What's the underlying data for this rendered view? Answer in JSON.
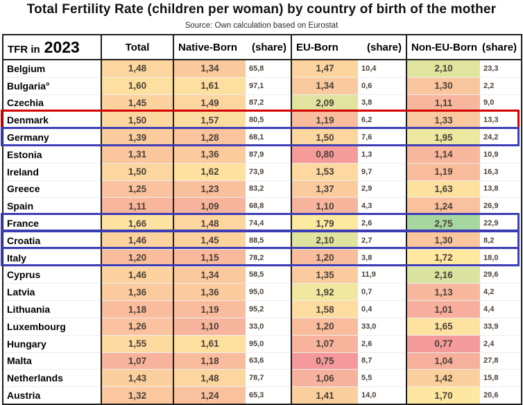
{
  "title": "Total Fertility Rate (children per woman) by country of birth of the mother",
  "source": "Source: Own calculation based on Eurostat",
  "table": {
    "corner": {
      "prefix": "TFR in",
      "year": "2023"
    },
    "col_headers": {
      "total": "Total",
      "native": "Native-Born",
      "native_share": "(share)",
      "eu": "EU-Born",
      "eu_share": "(share)",
      "noneu": "Non-EU-Born",
      "noneu_share": "(share)"
    }
  },
  "colors": {
    "scale_min": "#f4989b",
    "scale_mid": "#ffeba0",
    "scale_max": "#a5d79e",
    "scale_min_value": 0.75,
    "scale_mid_value": 1.75,
    "scale_max_value": 2.75,
    "highlight_red": "#d40000",
    "highlight_blue": "#3c3cb4"
  },
  "chart_data": {
    "type": "table",
    "title": "Total Fertility Rate (children per woman) by country of birth of the mother",
    "subtitle": "Source: Own calculation based on Eurostat",
    "columns": [
      "Country",
      "Total",
      "Native-Born",
      "Native-Born (share)",
      "EU-Born",
      "EU-Born (share)",
      "Non-EU-Born",
      "Non-EU-Born (share)"
    ],
    "rows": [
      {
        "country": "Belgium",
        "total": "1,48",
        "native": "1,34",
        "native_share": "65,8",
        "eu": "1,47",
        "eu_share": "10,4",
        "noneu": "2,10",
        "noneu_share": "23,3",
        "highlight": ""
      },
      {
        "country": "Bulgaria°",
        "total": "1,60",
        "native": "1,61",
        "native_share": "97,1",
        "eu": "1,34",
        "eu_share": "0,6",
        "noneu": "1,30",
        "noneu_share": "2,2",
        "highlight": ""
      },
      {
        "country": "Czechia",
        "total": "1,45",
        "native": "1,49",
        "native_share": "87,2",
        "eu": "2,09",
        "eu_share": "3,8",
        "noneu": "1,11",
        "noneu_share": "9,0",
        "highlight": ""
      },
      {
        "country": "Denmark",
        "total": "1,50",
        "native": "1,57",
        "native_share": "80,5",
        "eu": "1,19",
        "eu_share": "6,2",
        "noneu": "1,33",
        "noneu_share": "13,3",
        "highlight": "red"
      },
      {
        "country": "Germany",
        "total": "1,39",
        "native": "1,28",
        "native_share": "68,1",
        "eu": "1,50",
        "eu_share": "7,6",
        "noneu": "1,95",
        "noneu_share": "24,2",
        "highlight": "blue"
      },
      {
        "country": "Estonia",
        "total": "1,31",
        "native": "1,36",
        "native_share": "87,9",
        "eu": "0,80",
        "eu_share": "1,3",
        "noneu": "1,14",
        "noneu_share": "10,9",
        "highlight": ""
      },
      {
        "country": "Ireland",
        "total": "1,50",
        "native": "1,62",
        "native_share": "73,9",
        "eu": "1,53",
        "eu_share": "9,7",
        "noneu": "1,19",
        "noneu_share": "16,3",
        "highlight": ""
      },
      {
        "country": "Greece",
        "total": "1,25",
        "native": "1,23",
        "native_share": "83,2",
        "eu": "1,37",
        "eu_share": "2,9",
        "noneu": "1,63",
        "noneu_share": "13,8",
        "highlight": ""
      },
      {
        "country": "Spain",
        "total": "1,11",
        "native": "1,09",
        "native_share": "68,8",
        "eu": "1,10",
        "eu_share": "4,3",
        "noneu": "1,24",
        "noneu_share": "26,9",
        "highlight": ""
      },
      {
        "country": "France",
        "total": "1,66",
        "native": "1,48",
        "native_share": "74,4",
        "eu": "1,79",
        "eu_share": "2,6",
        "noneu": "2,75",
        "noneu_share": "22,9",
        "highlight": "blue"
      },
      {
        "country": "Croatia",
        "total": "1,46",
        "native": "1,45",
        "native_share": "88,5",
        "eu": "2,10",
        "eu_share": "2,7",
        "noneu": "1,30",
        "noneu_share": "8,2",
        "highlight": "blue"
      },
      {
        "country": "Italy",
        "total": "1,20",
        "native": "1,15",
        "native_share": "78,2",
        "eu": "1,20",
        "eu_share": "3,8",
        "noneu": "1,72",
        "noneu_share": "18,0",
        "highlight": "blue"
      },
      {
        "country": "Cyprus",
        "total": "1,46",
        "native": "1,34",
        "native_share": "58,5",
        "eu": "1,35",
        "eu_share": "11,9",
        "noneu": "2,16",
        "noneu_share": "29,6",
        "highlight": ""
      },
      {
        "country": "Latvia",
        "total": "1,36",
        "native": "1,36",
        "native_share": "95,0",
        "eu": "1,92",
        "eu_share": "0,7",
        "noneu": "1,13",
        "noneu_share": "4,2",
        "highlight": ""
      },
      {
        "country": "Lithuania",
        "total": "1,18",
        "native": "1,19",
        "native_share": "95,2",
        "eu": "1,58",
        "eu_share": "0,4",
        "noneu": "1,01",
        "noneu_share": "4,4",
        "highlight": ""
      },
      {
        "country": "Luxembourg",
        "total": "1,26",
        "native": "1,10",
        "native_share": "33,0",
        "eu": "1,20",
        "eu_share": "33,0",
        "noneu": "1,65",
        "noneu_share": "33,9",
        "highlight": ""
      },
      {
        "country": "Hungary",
        "total": "1,55",
        "native": "1,61",
        "native_share": "95,0",
        "eu": "1,07",
        "eu_share": "2,6",
        "noneu": "0,77",
        "noneu_share": "2,4",
        "highlight": ""
      },
      {
        "country": "Malta",
        "total": "1,07",
        "native": "1,18",
        "native_share": "63,6",
        "eu": "0,75",
        "eu_share": "8,7",
        "noneu": "1,04",
        "noneu_share": "27,8",
        "highlight": ""
      },
      {
        "country": "Netherlands",
        "total": "1,43",
        "native": "1,48",
        "native_share": "78,7",
        "eu": "1,06",
        "eu_share": "5,5",
        "noneu": "1,42",
        "noneu_share": "15,8",
        "highlight": ""
      },
      {
        "country": "Austria",
        "total": "1,32",
        "native": "1,24",
        "native_share": "65,3",
        "eu": "1,41",
        "eu_share": "14,0",
        "noneu": "1,70",
        "noneu_share": "20,6",
        "highlight": ""
      }
    ],
    "notes": "TFR value cells use a red-yellow-green color scale (low to high); share cells are white. Denmark row outlined red; Germany, France, Croatia and Italy rows outlined blue. Austria row is clipped by the bottom edge of the image."
  }
}
